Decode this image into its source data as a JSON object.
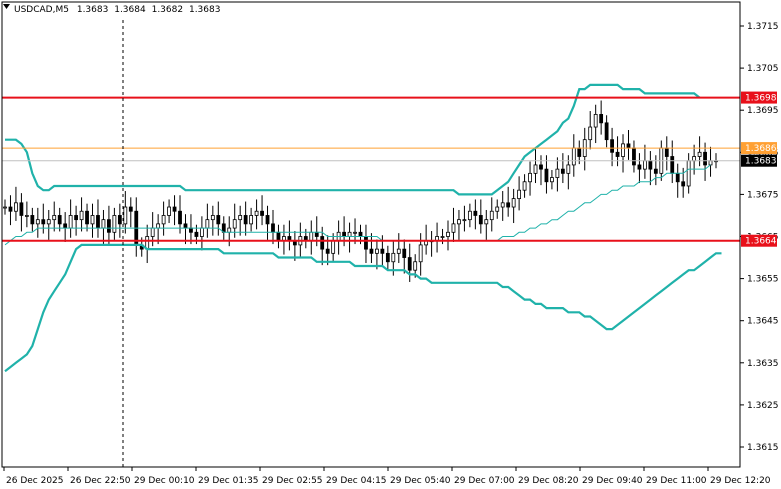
{
  "chart_data": {
    "type": "candlestick",
    "symbol_timeframe": "USDCAD,M5",
    "ohlc_header": [
      "1.3683",
      "1.3684",
      "1.3682",
      "1.3683"
    ],
    "y_ticks": [
      "1.3715",
      "1.3705",
      "1.3695",
      "1.3685",
      "1.3675",
      "1.3665",
      "1.3655",
      "1.3645",
      "1.3635",
      "1.3625",
      "1.3615"
    ],
    "x_ticks": [
      "26 Dec 2025",
      "26 Dec 22:50",
      "29 Dec 00:10",
      "29 Dec 01:35",
      "29 Dec 02:55",
      "29 Dec 04:15",
      "29 Dec 05:40",
      "29 Dec 07:00",
      "29 Dec 08:20",
      "29 Dec 09:40",
      "29 Dec 11:00",
      "29 Dec 12:20"
    ],
    "ylim": [
      1.361,
      1.3723
    ],
    "levels": [
      {
        "label": "1.3698",
        "value": 1.3698,
        "color": "#e8101a"
      },
      {
        "label": "1.3664",
        "value": 1.3664,
        "color": "#e8101a"
      },
      {
        "label": "1.3686",
        "value": 1.3686,
        "color": "#ffa033"
      }
    ],
    "current_price": {
      "label": "1.3683",
      "value": 1.3683
    },
    "close_series": [
      1.3672,
      1.3671,
      1.3673,
      1.367,
      1.367,
      1.3668,
      1.3669,
      1.3668,
      1.3669,
      1.367,
      1.3668,
      1.3667,
      1.367,
      1.3669,
      1.3671,
      1.3668,
      1.367,
      1.3667,
      1.3669,
      1.3666,
      1.367,
      1.3668,
      1.3672,
      1.3671,
      1.3663,
      1.3662,
      1.3665,
      1.3667,
      1.3668,
      1.367,
      1.3672,
      1.3671,
      1.3668,
      1.3667,
      1.3666,
      1.3665,
      1.3667,
      1.3669,
      1.367,
      1.3668,
      1.3666,
      1.3667,
      1.3669,
      1.367,
      1.3668,
      1.367,
      1.3671,
      1.367,
      1.3668,
      1.3666,
      1.3664,
      1.3665,
      1.3664,
      1.3663,
      1.3665,
      1.3664,
      1.3666,
      1.3665,
      1.3662,
      1.3661,
      1.3664,
      1.3666,
      1.3665,
      1.3666,
      1.3666,
      1.3665,
      1.3662,
      1.3661,
      1.3662,
      1.3661,
      1.3659,
      1.3661,
      1.3662,
      1.366,
      1.3657,
      1.3659,
      1.3663,
      1.3664,
      1.3664,
      1.3665,
      1.3665,
      1.3666,
      1.3668,
      1.3669,
      1.3669,
      1.3671,
      1.367,
      1.3668,
      1.3669,
      1.3671,
      1.3672,
      1.3673,
      1.3672,
      1.3674,
      1.3676,
      1.3678,
      1.368,
      1.3682,
      1.3681,
      1.3678,
      1.3679,
      1.3681,
      1.368,
      1.3682,
      1.3686,
      1.3684,
      1.3688,
      1.3691,
      1.3694,
      1.3692,
      1.3688,
      1.3685,
      1.3684,
      1.3687,
      1.3686,
      1.3682,
      1.3681,
      1.3683,
      1.3681,
      1.368,
      1.3686,
      1.3684,
      1.368,
      1.3678,
      1.3677,
      1.3683,
      1.3684,
      1.3685,
      1.3682,
      1.3683,
      1.3683
    ],
    "bb_upper": [
      1.3688,
      1.3688,
      1.3688,
      1.3687,
      1.3685,
      1.368,
      1.3677,
      1.3676,
      1.3676,
      1.3677,
      1.3677,
      1.3677,
      1.3677,
      1.3677,
      1.3677,
      1.3677,
      1.3677,
      1.3677,
      1.3677,
      1.3677,
      1.3677,
      1.3677,
      1.3677,
      1.3677,
      1.3677,
      1.3677,
      1.3677,
      1.3677,
      1.3677,
      1.3677,
      1.3677,
      1.3677,
      1.3677,
      1.3676,
      1.3676,
      1.3676,
      1.3676,
      1.3676,
      1.3676,
      1.3676,
      1.3676,
      1.3676,
      1.3676,
      1.3676,
      1.3676,
      1.3676,
      1.3676,
      1.3676,
      1.3676,
      1.3676,
      1.3676,
      1.3676,
      1.3676,
      1.3676,
      1.3676,
      1.3676,
      1.3676,
      1.3676,
      1.3676,
      1.3676,
      1.3676,
      1.3676,
      1.3676,
      1.3676,
      1.3676,
      1.3676,
      1.3676,
      1.3676,
      1.3676,
      1.3676,
      1.3676,
      1.3676,
      1.3676,
      1.3676,
      1.3676,
      1.3676,
      1.3676,
      1.3676,
      1.3676,
      1.3676,
      1.3676,
      1.3676,
      1.3676,
      1.3675,
      1.3675,
      1.3675,
      1.3675,
      1.3675,
      1.3675,
      1.3675,
      1.3676,
      1.3677,
      1.3678,
      1.368,
      1.3682,
      1.3684,
      1.3685,
      1.3686,
      1.3687,
      1.3688,
      1.3689,
      1.369,
      1.3692,
      1.3693,
      1.3696,
      1.37,
      1.37,
      1.3701,
      1.3701,
      1.3701,
      1.3701,
      1.3701,
      1.3701,
      1.37,
      1.37,
      1.37,
      1.37,
      1.3699,
      1.3699,
      1.3699,
      1.3699,
      1.3699,
      1.3699,
      1.3699,
      1.3699,
      1.3699,
      1.3699,
      1.3698
    ],
    "bb_middle": [
      1.3663,
      1.3664,
      1.3665,
      1.3665,
      1.3666,
      1.3666,
      1.3667,
      1.3667,
      1.3667,
      1.3667,
      1.3667,
      1.3667,
      1.3667,
      1.3667,
      1.3667,
      1.3667,
      1.3667,
      1.3667,
      1.3667,
      1.3667,
      1.3667,
      1.3667,
      1.3667,
      1.3667,
      1.3667,
      1.3667,
      1.3667,
      1.3667,
      1.3667,
      1.3667,
      1.3667,
      1.3667,
      1.3667,
      1.3667,
      1.3667,
      1.3667,
      1.3667,
      1.3667,
      1.3667,
      1.3667,
      1.3666,
      1.3666,
      1.3666,
      1.3666,
      1.3666,
      1.3666,
      1.3666,
      1.3666,
      1.3666,
      1.3666,
      1.3666,
      1.3666,
      1.3666,
      1.3666,
      1.3666,
      1.3666,
      1.3666,
      1.3666,
      1.3666,
      1.3665,
      1.3665,
      1.3665,
      1.3665,
      1.3665,
      1.3665,
      1.3665,
      1.3665,
      1.3665,
      1.3665,
      1.3664,
      1.3664,
      1.3664,
      1.3664,
      1.3664,
      1.3664,
      1.3664,
      1.3664,
      1.3664,
      1.3664,
      1.3664,
      1.3664,
      1.3664,
      1.3664,
      1.3664,
      1.3664,
      1.3664,
      1.3664,
      1.3664,
      1.3664,
      1.3664,
      1.3664,
      1.3665,
      1.3665,
      1.3665,
      1.3666,
      1.3666,
      1.3667,
      1.3667,
      1.3668,
      1.3668,
      1.3669,
      1.3669,
      1.367,
      1.3671,
      1.3671,
      1.3672,
      1.3673,
      1.3673,
      1.3674,
      1.3675,
      1.3675,
      1.3676,
      1.3676,
      1.3677,
      1.3677,
      1.3677,
      1.3678,
      1.3678,
      1.3678,
      1.3679,
      1.3679,
      1.368,
      1.368,
      1.368,
      1.368,
      1.3681,
      1.3681,
      1.3681,
      1.3681,
      1.3682
    ],
    "bb_lower": [
      1.3633,
      1.3634,
      1.3635,
      1.3636,
      1.3637,
      1.3639,
      1.3643,
      1.3647,
      1.365,
      1.3652,
      1.3654,
      1.3656,
      1.3659,
      1.3662,
      1.3663,
      1.3663,
      1.3663,
      1.3663,
      1.3663,
      1.3663,
      1.3663,
      1.3663,
      1.3663,
      1.3663,
      1.3663,
      1.3663,
      1.3662,
      1.3662,
      1.3662,
      1.3662,
      1.3662,
      1.3662,
      1.3662,
      1.3662,
      1.3662,
      1.3662,
      1.3662,
      1.3662,
      1.3662,
      1.3662,
      1.3661,
      1.3661,
      1.3661,
      1.3661,
      1.3661,
      1.3661,
      1.3661,
      1.3661,
      1.3661,
      1.3661,
      1.366,
      1.366,
      1.366,
      1.366,
      1.366,
      1.366,
      1.366,
      1.3659,
      1.3659,
      1.3659,
      1.3659,
      1.3659,
      1.3659,
      1.3659,
      1.3658,
      1.3658,
      1.3658,
      1.3658,
      1.3658,
      1.3658,
      1.3657,
      1.3657,
      1.3657,
      1.3657,
      1.3656,
      1.3656,
      1.3655,
      1.3655,
      1.3654,
      1.3654,
      1.3654,
      1.3654,
      1.3654,
      1.3654,
      1.3654,
      1.3654,
      1.3654,
      1.3654,
      1.3654,
      1.3654,
      1.3654,
      1.3653,
      1.3653,
      1.3652,
      1.3651,
      1.365,
      1.365,
      1.3649,
      1.3649,
      1.3648,
      1.3648,
      1.3648,
      1.3648,
      1.3647,
      1.3647,
      1.3647,
      1.3646,
      1.3646,
      1.3645,
      1.3644,
      1.3643,
      1.3643,
      1.3644,
      1.3645,
      1.3646,
      1.3647,
      1.3648,
      1.3649,
      1.365,
      1.3651,
      1.3652,
      1.3653,
      1.3654,
      1.3655,
      1.3656,
      1.3657,
      1.3657,
      1.3658,
      1.3659,
      1.366,
      1.3661,
      1.3661
    ]
  },
  "colors": {
    "background": "#ffffff",
    "bands": "#20b2aa",
    "candle": "#000000",
    "frame": "#000000",
    "cursor_line": "#000000"
  }
}
